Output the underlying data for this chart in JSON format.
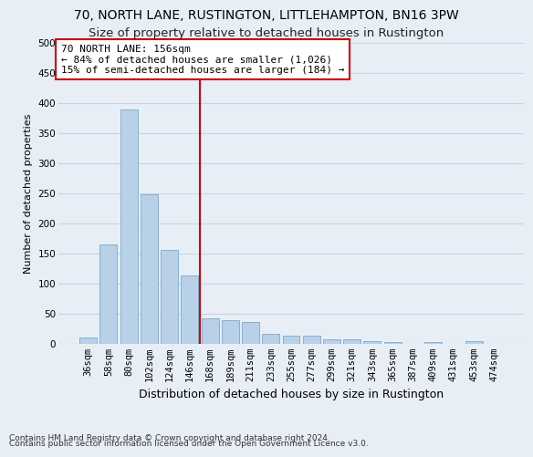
{
  "title": "70, NORTH LANE, RUSTINGTON, LITTLEHAMPTON, BN16 3PW",
  "subtitle": "Size of property relative to detached houses in Rustington",
  "xlabel": "Distribution of detached houses by size in Rustington",
  "ylabel": "Number of detached properties",
  "categories": [
    "36sqm",
    "58sqm",
    "80sqm",
    "102sqm",
    "124sqm",
    "146sqm",
    "168sqm",
    "189sqm",
    "211sqm",
    "233sqm",
    "255sqm",
    "277sqm",
    "299sqm",
    "321sqm",
    "343sqm",
    "365sqm",
    "387sqm",
    "409sqm",
    "431sqm",
    "453sqm",
    "474sqm"
  ],
  "values": [
    10,
    165,
    390,
    248,
    156,
    113,
    42,
    40,
    37,
    17,
    14,
    13,
    8,
    7,
    5,
    3,
    0,
    3,
    0,
    4,
    0
  ],
  "bar_color": "#b8d0e8",
  "bar_edgecolor": "#7aaac8",
  "vline_index": 6,
  "vline_color": "#cc0000",
  "annotation_line1": "70 NORTH LANE: 156sqm",
  "annotation_line2": "← 84% of detached houses are smaller (1,026)",
  "annotation_line3": "15% of semi-detached houses are larger (184) →",
  "annotation_box_color": "#ffffff",
  "annotation_box_edgecolor": "#cc0000",
  "ylim": [
    0,
    500
  ],
  "yticks": [
    0,
    50,
    100,
    150,
    200,
    250,
    300,
    350,
    400,
    450,
    500
  ],
  "grid_color": "#c8d4e4",
  "bg_color": "#e8eef6",
  "footer_line1": "Contains HM Land Registry data © Crown copyright and database right 2024.",
  "footer_line2": "Contains public sector information licensed under the Open Government Licence v3.0.",
  "title_fontsize": 10,
  "subtitle_fontsize": 9.5,
  "xlabel_fontsize": 9,
  "ylabel_fontsize": 8,
  "tick_fontsize": 7.5,
  "annotation_fontsize": 8,
  "footer_fontsize": 6.5
}
